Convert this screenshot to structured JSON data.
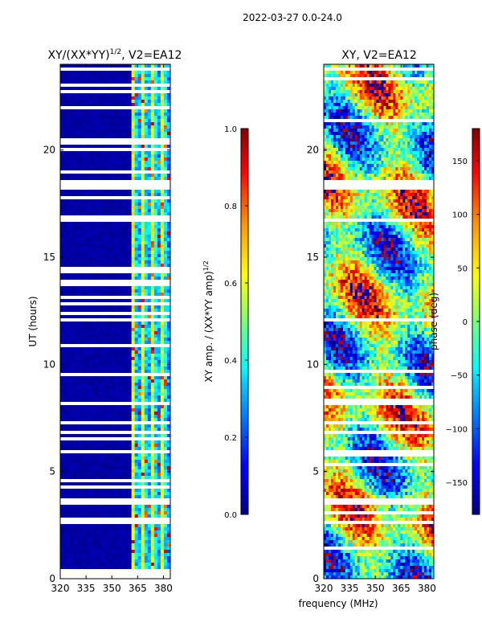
{
  "figure": {
    "suptitle": "2022-03-27 0.0-24.0",
    "shared_xlabel": "frequency (MHz)"
  },
  "chart_data": [
    {
      "type": "heatmap",
      "title_main": "XY/(XX*YY)",
      "title_sup": "1/2",
      "title_tail": ", V2=EA12",
      "xlabel": "",
      "ylabel": "UT (hours)",
      "xlim": [
        320,
        384
      ],
      "ylim": [
        0,
        24
      ],
      "xticks": [
        320,
        335,
        350,
        365,
        380
      ],
      "yticks": [
        0,
        5,
        10,
        15,
        20
      ],
      "colorbar": {
        "label_main": "XY amp. / (XX*YY amp)",
        "label_sup": "1/2",
        "range": [
          0.0,
          1.0
        ],
        "ticks": [
          "0.0",
          "0.2",
          "0.4",
          "0.6",
          "0.8",
          "1.0"
        ],
        "colormap": "jet"
      },
      "active_band_mhz": [
        361,
        384
      ],
      "flagged_hours": [
        [
          18.2,
          18.6
        ],
        [
          12.0,
          12.2
        ],
        [
          8.1,
          8.3
        ],
        [
          6.7,
          6.9
        ],
        [
          3.5,
          3.8
        ]
      ]
    },
    {
      "type": "heatmap",
      "title": "XY, V2=EA12",
      "xlabel": "frequency (MHz)",
      "ylabel": "",
      "xlim": [
        320,
        384
      ],
      "ylim": [
        0,
        24
      ],
      "xticks": [
        320,
        335,
        350,
        365,
        380
      ],
      "yticks": [
        0,
        5,
        10,
        15,
        20
      ],
      "colorbar": {
        "label": "phase (deg)",
        "range": [
          -180,
          180
        ],
        "ticks": [
          "150",
          "100",
          "50",
          "0",
          "−50",
          "−100",
          "−150"
        ],
        "colormap": "jet"
      },
      "flagged_hours": [
        [
          18.2,
          18.6
        ],
        [
          12.0,
          12.2
        ],
        [
          8.1,
          8.3
        ],
        [
          6.7,
          6.9
        ],
        [
          3.5,
          3.8
        ]
      ]
    }
  ]
}
